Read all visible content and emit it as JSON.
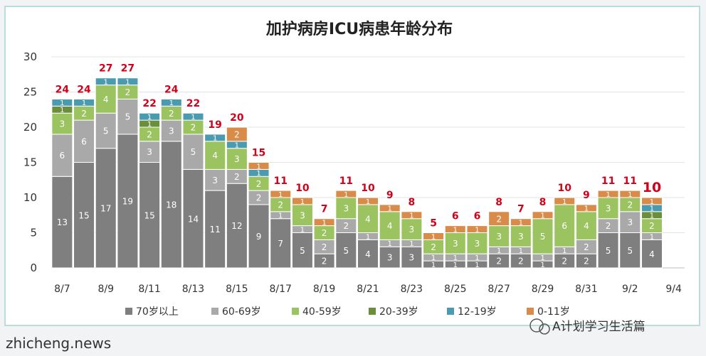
{
  "chart_data": {
    "type": "bar",
    "stacked": true,
    "title": "加护病房ICU病患年龄分布",
    "xlabel": "",
    "ylabel": "",
    "ylim": [
      0,
      30
    ],
    "yticks": [
      0,
      5,
      10,
      15,
      20,
      25,
      30
    ],
    "grid": "horizontal",
    "legend_position": "bottom",
    "categories": [
      "8/7",
      "8/8",
      "8/9",
      "8/10",
      "8/11",
      "8/12",
      "8/13",
      "8/14",
      "8/15",
      "8/16",
      "8/17",
      "8/18",
      "8/19",
      "8/20",
      "8/21",
      "8/22",
      "8/23",
      "8/24",
      "8/25",
      "8/26",
      "8/27",
      "8/28",
      "8/29",
      "8/30",
      "8/31",
      "9/1",
      "9/2",
      "9/3",
      "9/4"
    ],
    "xtick_labels": [
      "8/7",
      "8/9",
      "8/11",
      "8/13",
      "8/15",
      "8/17",
      "8/19",
      "8/21",
      "8/23",
      "8/25",
      "8/27",
      "8/29",
      "8/31",
      "9/2",
      "9/4"
    ],
    "totals": [
      24,
      24,
      27,
      27,
      22,
      24,
      22,
      19,
      20,
      15,
      11,
      10,
      7,
      11,
      10,
      9,
      8,
      5,
      6,
      6,
      8,
      7,
      8,
      10,
      9,
      11,
      11,
      10,
      null
    ],
    "series": [
      {
        "name": "70岁以上",
        "color": "#7f7f7f",
        "values": [
          13,
          15,
          17,
          19,
          15,
          18,
          14,
          11,
          12,
          9,
          7,
          5,
          2,
          5,
          4,
          3,
          3,
          1,
          1,
          1,
          2,
          2,
          1,
          2,
          2,
          5,
          5,
          4,
          0
        ]
      },
      {
        "name": "60-69岁",
        "color": "#a9a9a9",
        "values": [
          6,
          6,
          5,
          5,
          3,
          3,
          5,
          3,
          2,
          2,
          1,
          1,
          2,
          2,
          1,
          1,
          1,
          1,
          1,
          1,
          1,
          1,
          1,
          1,
          2,
          2,
          3,
          1,
          0
        ]
      },
      {
        "name": "40-59岁",
        "color": "#9bc360",
        "values": [
          3,
          2,
          4,
          2,
          2,
          2,
          2,
          4,
          3,
          2,
          2,
          3,
          2,
          3,
          4,
          4,
          3,
          2,
          3,
          3,
          3,
          3,
          5,
          6,
          4,
          3,
          2,
          2,
          0
        ]
      },
      {
        "name": "20-39岁",
        "color": "#6b8e3a",
        "values": [
          1,
          0,
          0,
          0,
          1,
          0,
          0,
          0,
          0,
          0,
          0,
          0,
          0,
          0,
          0,
          0,
          0,
          0,
          0,
          0,
          0,
          0,
          0,
          0,
          0,
          0,
          0,
          1,
          0
        ]
      },
      {
        "name": "12-19岁",
        "color": "#4a9ab0",
        "values": [
          1,
          1,
          1,
          1,
          1,
          1,
          1,
          1,
          1,
          1,
          0,
          0,
          0,
          0,
          0,
          0,
          0,
          0,
          0,
          0,
          0,
          0,
          0,
          0,
          0,
          0,
          0,
          1,
          0
        ]
      },
      {
        "name": "0-11岁",
        "color": "#d98c4a",
        "values": [
          0,
          0,
          0,
          0,
          0,
          0,
          0,
          0,
          2,
          1,
          1,
          1,
          1,
          1,
          1,
          1,
          1,
          1,
          1,
          1,
          2,
          1,
          1,
          1,
          1,
          1,
          1,
          1,
          0
        ]
      }
    ]
  },
  "footer": {
    "watermark_left": "zhicheng.news",
    "watermark_right": "A计划学习生活篇"
  },
  "colors": {
    "total_label": "#d0021b",
    "gridline": "#e3e3e3",
    "segment_text": "#ffffff"
  }
}
